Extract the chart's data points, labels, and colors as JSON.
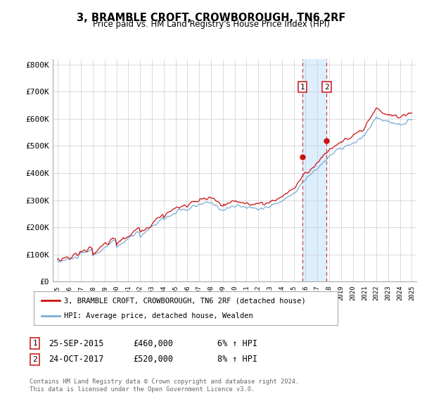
{
  "title": "3, BRAMBLE CROFT, CROWBOROUGH, TN6 2RF",
  "subtitle": "Price paid vs. HM Land Registry's House Price Index (HPI)",
  "ylim": [
    0,
    820000
  ],
  "yticks": [
    0,
    100000,
    200000,
    300000,
    400000,
    500000,
    600000,
    700000,
    800000
  ],
  "ytick_labels": [
    "£0",
    "£100K",
    "£200K",
    "£300K",
    "£400K",
    "£500K",
    "£600K",
    "£700K",
    "£800K"
  ],
  "hpi_color": "#7aadd4",
  "price_color": "#cc1111",
  "highlight_color": "#ddeeff",
  "transaction1_date": "25-SEP-2015",
  "transaction1_price": 460000,
  "transaction1_note": "6% ↑ HPI",
  "transaction2_date": "24-OCT-2017",
  "transaction2_price": 520000,
  "transaction2_note": "8% ↑ HPI",
  "legend_label1": "3, BRAMBLE CROFT, CROWBOROUGH, TN6 2RF (detached house)",
  "legend_label2": "HPI: Average price, detached house, Wealden",
  "footer": "Contains HM Land Registry data © Crown copyright and database right 2024.\nThis data is licensed under the Open Government Licence v3.0.",
  "background_color": "#ffffff",
  "t1_x": 2015.75,
  "t2_x": 2017.79,
  "t1_marker_y": 460000,
  "t2_marker_y": 520000,
  "xlim_left": 1994.6,
  "xlim_right": 2025.4
}
